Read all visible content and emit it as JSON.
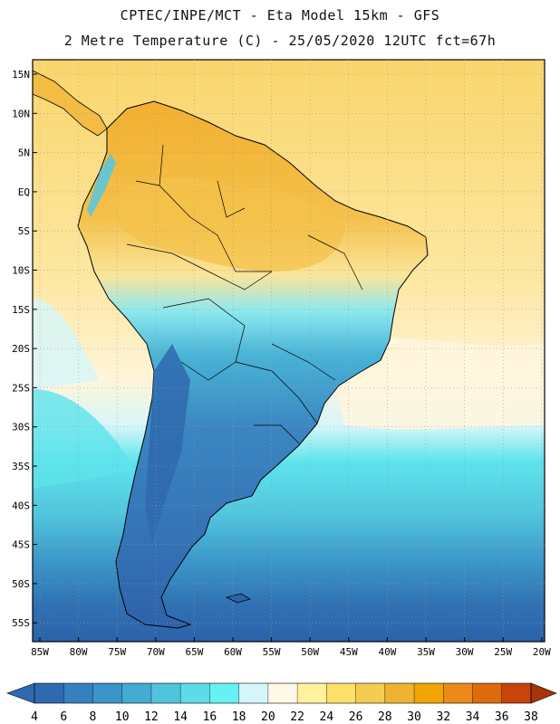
{
  "header": {
    "line1": "CPTEC/INPE/MCT -  Eta Model 15km - GFS",
    "line2": "2 Metre Temperature (C) - 25/05/2020 12UTC fct=67h"
  },
  "map": {
    "lat_labels": [
      "15N",
      "10N",
      "5N",
      "EQ",
      "5S",
      "10S",
      "15S",
      "20S",
      "25S",
      "30S",
      "35S",
      "40S",
      "45S",
      "50S",
      "55S"
    ],
    "lon_labels": [
      "85W",
      "80W",
      "75W",
      "70W",
      "65W",
      "60W",
      "55W",
      "50W",
      "45W",
      "40W",
      "35W",
      "30W",
      "25W",
      "20W"
    ],
    "field": "2 Metre Temperature"
  },
  "colorbar": {
    "labels": [
      "4",
      "6",
      "8",
      "10",
      "12",
      "14",
      "16",
      "18",
      "20",
      "22",
      "24",
      "26",
      "28",
      "30",
      "32",
      "34",
      "36",
      "38"
    ],
    "colors": [
      "#2f6ab0",
      "#3680c0",
      "#3b96c8",
      "#44acd2",
      "#50c4dc",
      "#5cdce8",
      "#66f2f4",
      "#d4f6fa",
      "#fff8e6",
      "#fff29a",
      "#fde06a",
      "#f6cc50",
      "#eeb430",
      "#f2a400",
      "#ea8a1a",
      "#de6a0e",
      "#c84408",
      "#a8340a"
    ]
  },
  "colors": {
    "ocean_warm": "#fce4a0",
    "ocean_mid": "#fff4d6",
    "ocean_cool": "#5ae2ea",
    "ocean_cold": "#2f6ab0",
    "land_hot": "#f0b430",
    "border": "#000000"
  }
}
